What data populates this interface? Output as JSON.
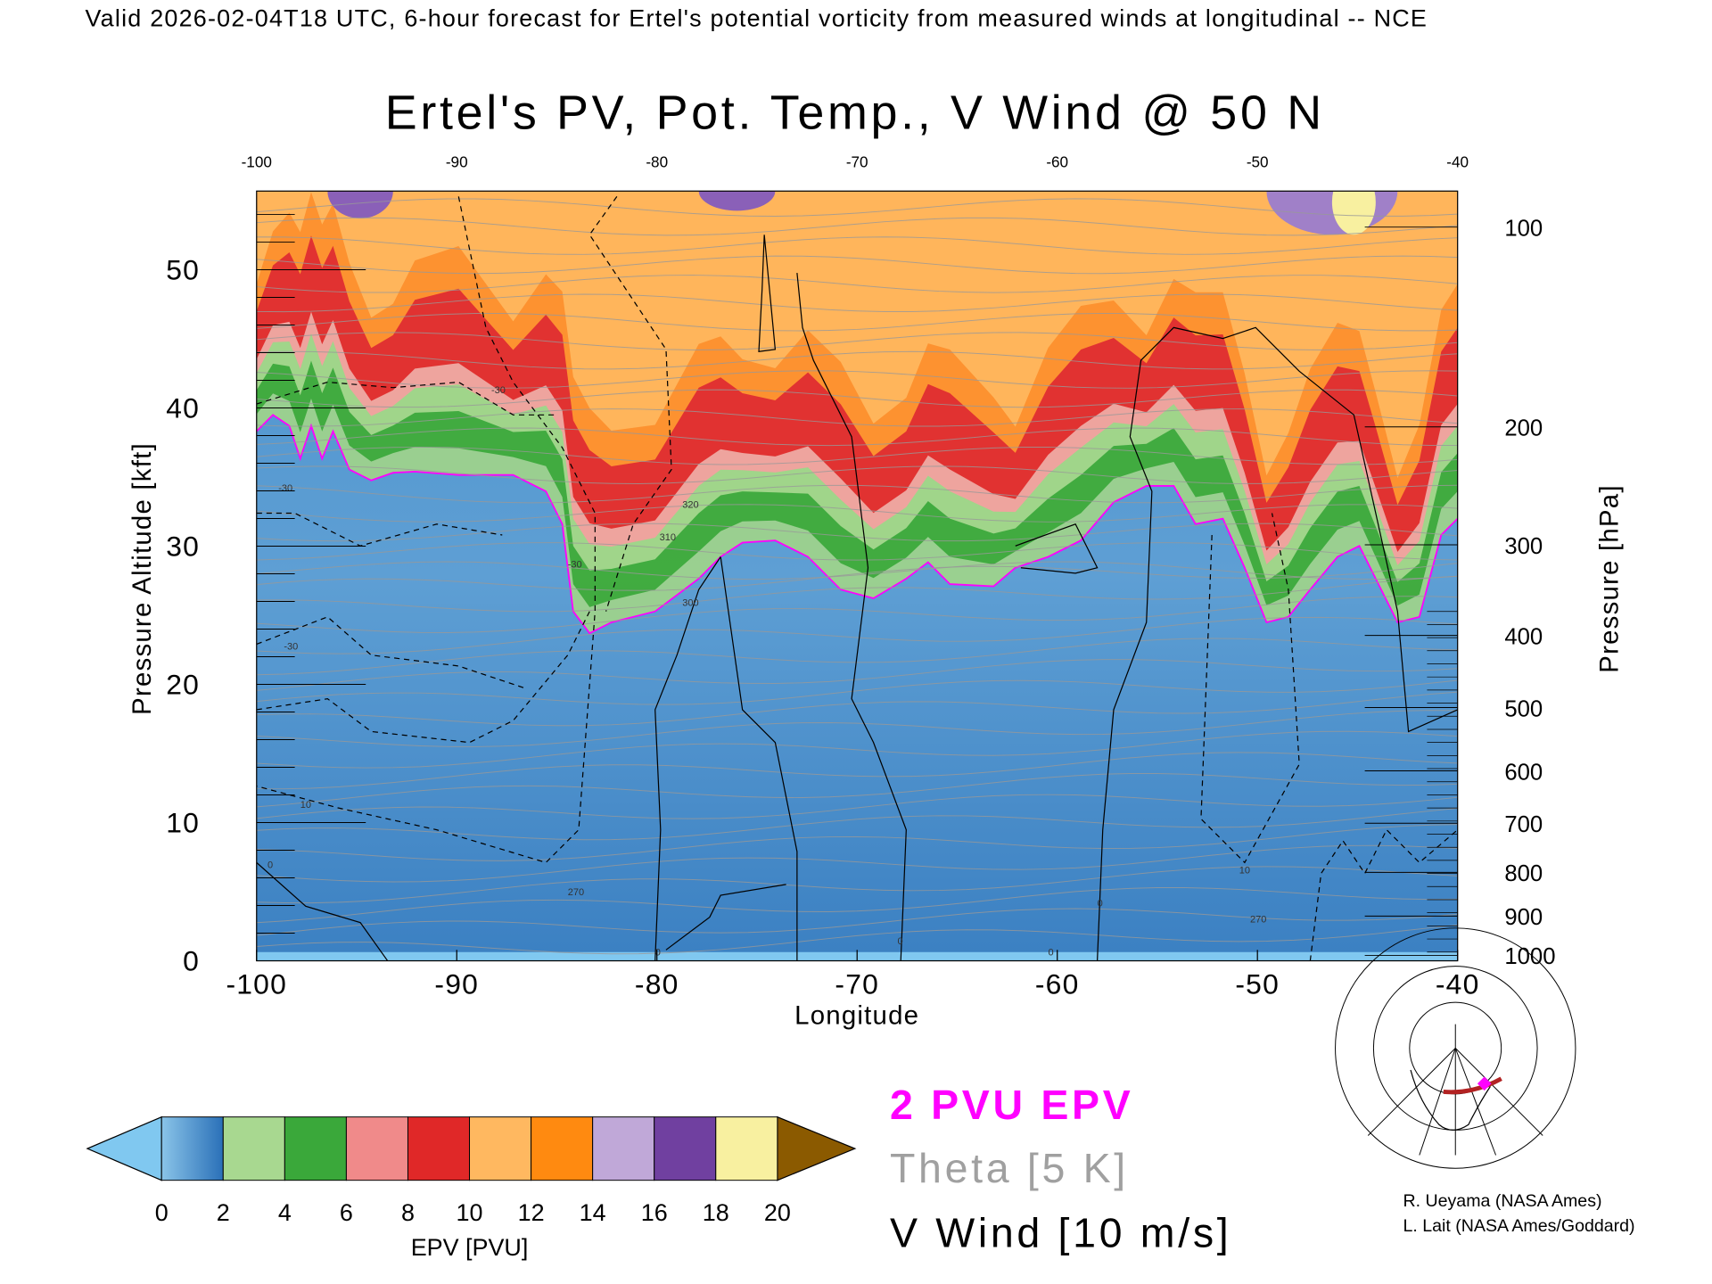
{
  "header": "Valid 2026-02-04T18 UTC, 6-hour forecast for Ertel's potential vorticity from measured winds at longitudinal -- NCE",
  "chart_data": {
    "type": "heatmap",
    "title": "Ertel's PV, Pot. Temp., V Wind @ 50 N",
    "xlabel": "Longitude",
    "ylabel": "Pressure Altitude [kft]",
    "y2label": "Pressure [hPa]",
    "xlim": [
      -100,
      -40
    ],
    "ylim": [
      0,
      56
    ],
    "x_ticks": [
      "-100",
      "-90",
      "-80",
      "-70",
      "-60",
      "-50",
      "-40"
    ],
    "x_ticks_top": [
      "-100",
      "-90",
      "-80",
      "-70",
      "-60",
      "-50",
      "-40"
    ],
    "y_ticks": [
      "0",
      "10",
      "20",
      "30",
      "40",
      "50"
    ],
    "y2_ticks": [
      "100",
      "200",
      "300",
      "400",
      "500",
      "600",
      "700",
      "800",
      "900",
      "1000"
    ],
    "colorbar": {
      "label": "EPV [PVU]",
      "ticks": [
        "0",
        "2",
        "4",
        "6",
        "8",
        "10",
        "12",
        "14",
        "16",
        "18",
        "20"
      ],
      "colors": [
        "#3a86c8",
        "#a8d890",
        "#3aa83a",
        "#f08a8a",
        "#e02828",
        "#ffb860",
        "#ff8a10",
        "#c0a8d8",
        "#7040a0",
        "#f8f0a0"
      ],
      "under_color": "#80c8f0",
      "over_color": "#8b5a00"
    },
    "legend": {
      "pv": "2 PVU EPV",
      "theta": "Theta [5 K]",
      "wind": "V Wind [10 m/s]",
      "pv_color": "#ff00ff",
      "theta_color": "#a0a0a0"
    },
    "contour_labels": [
      "-30",
      "-30",
      "-30",
      "-30",
      "10",
      "0",
      "0",
      "0",
      "0",
      "0",
      "10",
      "300",
      "310",
      "320",
      "270",
      "270"
    ]
  },
  "credits": [
    "R. Ueyama (NASA Ames)",
    "L. Lait (NASA Ames/Goddard)"
  ]
}
